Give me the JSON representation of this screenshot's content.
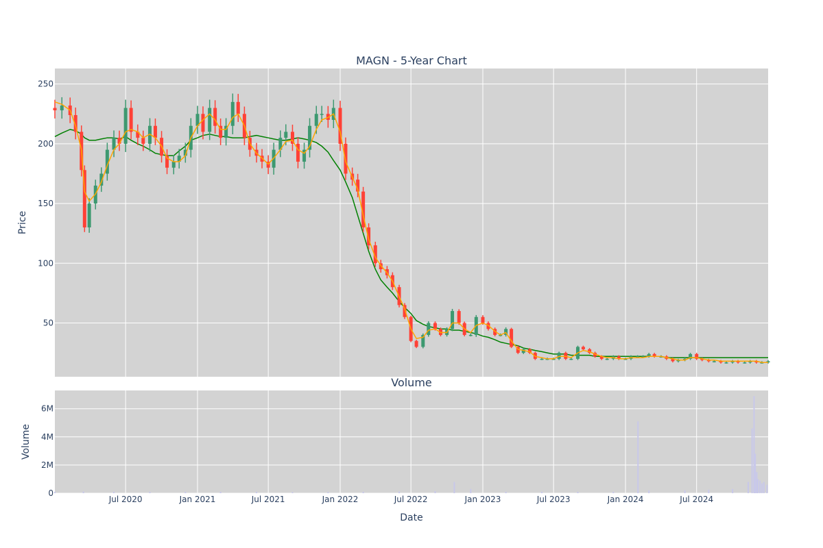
{
  "chart_data": [
    {
      "type": "candlestick",
      "title": "MAGN - 5-Year Chart",
      "xlabel": "",
      "ylabel": "Price",
      "ylim": [
        5,
        263
      ],
      "yticks": [
        50,
        100,
        150,
        200,
        250
      ],
      "grid": true,
      "legend": "none",
      "colors": {
        "increasing": "#3d9970",
        "decreasing": "#ff4136",
        "plot_bg": "#d3d3d3",
        "ma_short": "#ffa500",
        "ma_long": "#008000"
      },
      "x": [
        "2020-01-02",
        "2020-01-20",
        "2020-02-10",
        "2020-02-24",
        "2020-03-10",
        "2020-03-18",
        "2020-03-30",
        "2020-04-15",
        "2020-04-30",
        "2020-05-15",
        "2020-06-01",
        "2020-06-15",
        "2020-07-01",
        "2020-07-15",
        "2020-08-01",
        "2020-08-15",
        "2020-09-01",
        "2020-09-15",
        "2020-10-01",
        "2020-10-15",
        "2020-11-01",
        "2020-11-15",
        "2020-12-01",
        "2020-12-15",
        "2021-01-01",
        "2021-01-15",
        "2021-02-01",
        "2021-02-15",
        "2021-03-01",
        "2021-03-15",
        "2021-04-01",
        "2021-04-15",
        "2021-05-01",
        "2021-05-15",
        "2021-06-01",
        "2021-06-15",
        "2021-07-01",
        "2021-07-15",
        "2021-08-01",
        "2021-08-15",
        "2021-09-01",
        "2021-09-15",
        "2021-10-01",
        "2021-10-15",
        "2021-11-01",
        "2021-11-15",
        "2021-12-01",
        "2021-12-15",
        "2022-01-01",
        "2022-01-15",
        "2022-02-01",
        "2022-02-15",
        "2022-03-01",
        "2022-03-15",
        "2022-04-01",
        "2022-04-15",
        "2022-05-01",
        "2022-05-15",
        "2022-06-01",
        "2022-06-15",
        "2022-07-01",
        "2022-07-15",
        "2022-08-01",
        "2022-08-15",
        "2022-09-01",
        "2022-09-15",
        "2022-10-01",
        "2022-10-15",
        "2022-11-01",
        "2022-11-15",
        "2022-12-01",
        "2022-12-15",
        "2023-01-01",
        "2023-01-15",
        "2023-02-01",
        "2023-02-15",
        "2023-03-01",
        "2023-03-15",
        "2023-04-01",
        "2023-04-15",
        "2023-05-01",
        "2023-05-15",
        "2023-06-01",
        "2023-06-15",
        "2023-07-01",
        "2023-07-15",
        "2023-08-01",
        "2023-08-15",
        "2023-09-01",
        "2023-09-15",
        "2023-10-01",
        "2023-10-15",
        "2023-11-01",
        "2023-11-15",
        "2023-12-01",
        "2023-12-15",
        "2024-01-01",
        "2024-01-15",
        "2024-02-01",
        "2024-02-15",
        "2024-03-01",
        "2024-03-15",
        "2024-04-01",
        "2024-04-15",
        "2024-05-01",
        "2024-05-15",
        "2024-06-01",
        "2024-06-15",
        "2024-07-01",
        "2024-07-15",
        "2024-08-01",
        "2024-08-15",
        "2024-09-01",
        "2024-09-15",
        "2024-10-01",
        "2024-10-15",
        "2024-11-01",
        "2024-11-15",
        "2024-12-01",
        "2024-12-15",
        "2024-12-31"
      ],
      "close": [
        228,
        232,
        224,
        210,
        178,
        130,
        150,
        165,
        175,
        195,
        205,
        200,
        230,
        210,
        205,
        200,
        215,
        205,
        190,
        180,
        185,
        190,
        195,
        215,
        225,
        210,
        230,
        215,
        205,
        215,
        235,
        225,
        205,
        195,
        190,
        185,
        180,
        195,
        205,
        210,
        200,
        185,
        195,
        215,
        225,
        225,
        220,
        230,
        200,
        175,
        170,
        160,
        130,
        115,
        100,
        95,
        90,
        80,
        65,
        55,
        35,
        30,
        40,
        50,
        45,
        40,
        45,
        60,
        50,
        40,
        40,
        55,
        50,
        45,
        40,
        40,
        45,
        30,
        25,
        28,
        25,
        20,
        20,
        20,
        20,
        25,
        20,
        20,
        30,
        28,
        25,
        22,
        20,
        20,
        22,
        20,
        20,
        22,
        22,
        22,
        24,
        22,
        22,
        20,
        18,
        19,
        20,
        24,
        20,
        19,
        18,
        18,
        17,
        17,
        18,
        17,
        17,
        18,
        17,
        17,
        18
      ],
      "ma_short": [
        235,
        233,
        228,
        215,
        195,
        160,
        152,
        158,
        168,
        182,
        195,
        200,
        210,
        212,
        210,
        205,
        208,
        205,
        198,
        188,
        185,
        185,
        190,
        205,
        215,
        220,
        225,
        220,
        212,
        212,
        222,
        225,
        215,
        200,
        192,
        188,
        183,
        188,
        195,
        202,
        203,
        195,
        192,
        198,
        212,
        220,
        222,
        225,
        210,
        185,
        172,
        162,
        140,
        120,
        105,
        98,
        92,
        85,
        72,
        62,
        45,
        37,
        38,
        44,
        45,
        42,
        42,
        50,
        50,
        45,
        42,
        48,
        50,
        48,
        43,
        40,
        42,
        35,
        28,
        27,
        26,
        22,
        21,
        20,
        20,
        22,
        22,
        21,
        25,
        27,
        26,
        24,
        22,
        21,
        21,
        20,
        20,
        21,
        21,
        21,
        22,
        22,
        22,
        21,
        20,
        19,
        19,
        21,
        21,
        20,
        19,
        19,
        18,
        18,
        18,
        18,
        18,
        18,
        18,
        17,
        17
      ],
      "ma_long": [
        206,
        209,
        212,
        211,
        208,
        205,
        203,
        203,
        204,
        205,
        205,
        204,
        206,
        203,
        200,
        198,
        195,
        192,
        191,
        190,
        190,
        194,
        198,
        203,
        205,
        207,
        208,
        207,
        206,
        206,
        205,
        205,
        205,
        206,
        207,
        206,
        205,
        204,
        203,
        203,
        204,
        205,
        204,
        203,
        201,
        198,
        193,
        186,
        178,
        168,
        155,
        140,
        125,
        110,
        95,
        86,
        80,
        75,
        68,
        63,
        58,
        52,
        49,
        47,
        46,
        45,
        45,
        44,
        44,
        43,
        42,
        41,
        39,
        38,
        36,
        34,
        33,
        32,
        31,
        29,
        28,
        27,
        26,
        25,
        24,
        24,
        24,
        23,
        23,
        23,
        23,
        22,
        22,
        22,
        22,
        22,
        22,
        22,
        22,
        22,
        22,
        22,
        22,
        21,
        21,
        21,
        21,
        21,
        21,
        21,
        21,
        21,
        21,
        21,
        21,
        21,
        21,
        21,
        21,
        21,
        21
      ]
    },
    {
      "type": "bar",
      "title": "Volume",
      "xlabel": "Date",
      "ylabel": "Volume",
      "ylim": [
        0,
        7.3
      ],
      "yticks": [
        "0",
        "2M",
        "4M",
        "6M"
      ],
      "xticks": [
        "Jul 2020",
        "Jan 2021",
        "Jul 2021",
        "Jan 2022",
        "Jul 2022",
        "Jan 2023",
        "Jul 2023",
        "Jan 2024",
        "Jul 2024"
      ],
      "xtick_dates": [
        "2020-07-01",
        "2021-01-01",
        "2021-07-01",
        "2022-01-01",
        "2022-07-01",
        "2023-01-01",
        "2023-07-01",
        "2024-01-01",
        "2024-07-01"
      ],
      "bar_color": "#c8c8ea",
      "units": "millions",
      "dates": [
        "2020-01-02",
        "2020-03-15",
        "2020-06-01",
        "2020-09-01",
        "2020-12-01",
        "2021-03-01",
        "2021-06-01",
        "2021-09-01",
        "2021-12-01",
        "2022-03-01",
        "2022-06-01",
        "2022-09-01",
        "2022-10-20",
        "2022-12-01",
        "2023-03-01",
        "2023-06-01",
        "2023-09-01",
        "2023-12-01",
        "2024-02-02",
        "2024-03-01",
        "2024-06-01",
        "2024-08-01",
        "2024-10-01",
        "2024-11-10",
        "2024-11-20",
        "2024-11-25",
        "2024-11-28",
        "2024-12-02",
        "2024-12-05",
        "2024-12-10",
        "2024-12-15",
        "2024-12-20",
        "2024-12-28"
      ],
      "values": [
        0.1,
        0.12,
        0.1,
        0.1,
        0.1,
        0.1,
        0.1,
        0.08,
        0.08,
        0.1,
        0.12,
        0.15,
        0.8,
        0.3,
        0.1,
        0.1,
        0.1,
        0.1,
        5.1,
        0.2,
        0.2,
        0.25,
        0.3,
        0.8,
        4.6,
        6.9,
        2.8,
        1.5,
        1.0,
        0.9,
        0.7,
        0.8,
        0.6
      ]
    }
  ]
}
